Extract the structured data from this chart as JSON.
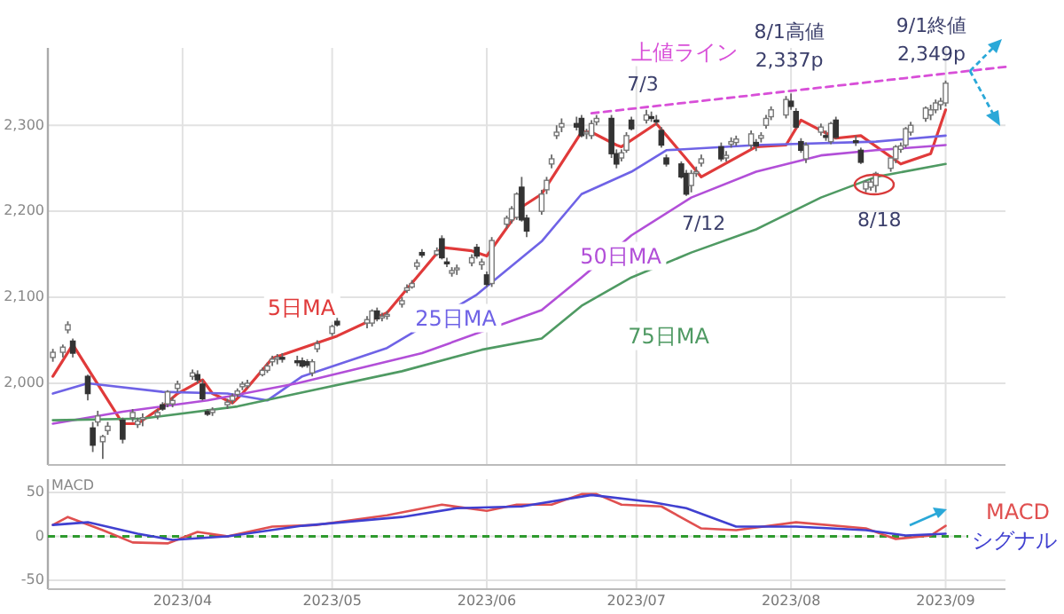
{
  "chart_data": [
    {
      "type": "candlestick",
      "xlim": [
        "2023-03-05",
        "2023-09-13"
      ],
      "ylim": [
        1905,
        2390
      ],
      "xticks": [
        {
          "value": "2023-04-01",
          "label": null
        },
        {
          "value": "2023-05-01",
          "label": null
        },
        {
          "value": "2023-06-01",
          "label": null
        },
        {
          "value": "2023-07-01",
          "label": null
        },
        {
          "value": "2023-08-01",
          "label": null
        },
        {
          "value": "2023-09-01",
          "label": null
        }
      ],
      "yticks": [
        {
          "value": 2000,
          "label": "2,000"
        },
        {
          "value": 2100,
          "label": "2,100"
        },
        {
          "value": 2200,
          "label": "2,200"
        },
        {
          "value": 2300,
          "label": "2,300"
        }
      ],
      "tick_labels": "y",
      "grid": true,
      "x": [
        "2023-03-06",
        "2023-03-08",
        "2023-03-09",
        "2023-03-10",
        "2023-03-13",
        "2023-03-14",
        "2023-03-15",
        "2023-03-16",
        "2023-03-17",
        "2023-03-20",
        "2023-03-22",
        "2023-03-23",
        "2023-03-24",
        "2023-03-27",
        "2023-03-28",
        "2023-03-29",
        "2023-03-30",
        "2023-03-31",
        "2023-04-03",
        "2023-04-04",
        "2023-04-05",
        "2023-04-06",
        "2023-04-07",
        "2023-04-10",
        "2023-04-11",
        "2023-04-12",
        "2023-04-13",
        "2023-04-14",
        "2023-04-17",
        "2023-04-18",
        "2023-04-19",
        "2023-04-20",
        "2023-04-21",
        "2023-04-24",
        "2023-04-25",
        "2023-04-26",
        "2023-04-27",
        "2023-04-28",
        "2023-05-01",
        "2023-05-02",
        "2023-05-08",
        "2023-05-09",
        "2023-05-10",
        "2023-05-11",
        "2023-05-12",
        "2023-05-15",
        "2023-05-16",
        "2023-05-17",
        "2023-05-18",
        "2023-05-19",
        "2023-05-22",
        "2023-05-23",
        "2023-05-24",
        "2023-05-25",
        "2023-05-26",
        "2023-05-29",
        "2023-05-30",
        "2023-05-31",
        "2023-06-01",
        "2023-06-02",
        "2023-06-05",
        "2023-06-06",
        "2023-06-07",
        "2023-06-08",
        "2023-06-09",
        "2023-06-12",
        "2023-06-13",
        "2023-06-14",
        "2023-06-15",
        "2023-06-16",
        "2023-06-19",
        "2023-06-20",
        "2023-06-21",
        "2023-06-22",
        "2023-06-23",
        "2023-06-26",
        "2023-06-27",
        "2023-06-28",
        "2023-06-29",
        "2023-06-30",
        "2023-07-03",
        "2023-07-04",
        "2023-07-05",
        "2023-07-06",
        "2023-07-07",
        "2023-07-10",
        "2023-07-11",
        "2023-07-12",
        "2023-07-13",
        "2023-07-14",
        "2023-07-18",
        "2023-07-19",
        "2023-07-20",
        "2023-07-21",
        "2023-07-24",
        "2023-07-25",
        "2023-07-26",
        "2023-07-27",
        "2023-07-28",
        "2023-07-31",
        "2023-08-01",
        "2023-08-02",
        "2023-08-03",
        "2023-08-04",
        "2023-08-07",
        "2023-08-08",
        "2023-08-09",
        "2023-08-10",
        "2023-08-14",
        "2023-08-15",
        "2023-08-16",
        "2023-08-17",
        "2023-08-18",
        "2023-08-21",
        "2023-08-22",
        "2023-08-23",
        "2023-08-24",
        "2023-08-25",
        "2023-08-28",
        "2023-08-29",
        "2023-08-30",
        "2023-08-31",
        "2023-09-01"
      ],
      "ohlc": [
        [
          2030,
          2040,
          2025,
          2036
        ],
        [
          2036,
          2045,
          2030,
          2042
        ],
        [
          2062,
          2072,
          2058,
          2068
        ],
        [
          2049,
          2052,
          2030,
          2035
        ],
        [
          2008,
          2010,
          1980,
          1988
        ],
        [
          1948,
          1955,
          1920,
          1928
        ],
        [
          1955,
          1968,
          1950,
          1962
        ],
        [
          1932,
          1940,
          1912,
          1938
        ],
        [
          1945,
          1955,
          1940,
          1950
        ],
        [
          1957,
          1960,
          1930,
          1935
        ],
        [
          1960,
          1970,
          1955,
          1966
        ],
        [
          1952,
          1960,
          1948,
          1956
        ],
        [
          1958,
          1965,
          1950,
          1960
        ],
        [
          1962,
          1970,
          1958,
          1966
        ],
        [
          1975,
          1978,
          1968,
          1970
        ],
        [
          1976,
          1992,
          1972,
          1990
        ],
        [
          1976,
          1984,
          1972,
          1980
        ],
        [
          1994,
          2003,
          1990,
          1999
        ],
        [
          2008,
          2016,
          2004,
          2012
        ],
        [
          2010,
          2015,
          2000,
          2004
        ],
        [
          1999,
          2004,
          1980,
          1982
        ],
        [
          1967,
          1970,
          1962,
          1964
        ],
        [
          1966,
          1972,
          1962,
          1969
        ],
        [
          1975,
          1982,
          1970,
          1978
        ],
        [
          1980,
          1988,
          1976,
          1985
        ],
        [
          1987,
          1994,
          1984,
          1991
        ],
        [
          1996,
          2002,
          1992,
          1999
        ],
        [
          1997,
          2004,
          1994,
          2000
        ],
        [
          2010,
          2018,
          2008,
          2015
        ],
        [
          2015,
          2024,
          2012,
          2020
        ],
        [
          2025,
          2032,
          2020,
          2028
        ],
        [
          2028,
          2034,
          2022,
          2030
        ],
        [
          2030,
          2035,
          2024,
          2028
        ],
        [
          2026,
          2032,
          2020,
          2024
        ],
        [
          2026,
          2030,
          2018,
          2020
        ],
        [
          2025,
          2028,
          2018,
          2021
        ],
        [
          2012,
          2028,
          2008,
          2025
        ],
        [
          2040,
          2050,
          2036,
          2046
        ],
        [
          2058,
          2068,
          2055,
          2066
        ],
        [
          2072,
          2076,
          2066,
          2068
        ],
        [
          2070,
          2078,
          2064,
          2074
        ],
        [
          2070,
          2086,
          2066,
          2084
        ],
        [
          2084,
          2088,
          2072,
          2075
        ],
        [
          2076,
          2082,
          2072,
          2078
        ],
        [
          2078,
          2084,
          2074,
          2080
        ],
        [
          2092,
          2100,
          2088,
          2096
        ],
        [
          2108,
          2115,
          2105,
          2111
        ],
        [
          2112,
          2120,
          2110,
          2116
        ],
        [
          2136,
          2144,
          2132,
          2140
        ],
        [
          2152,
          2156,
          2146,
          2149
        ],
        [
          2150,
          2158,
          2148,
          2154
        ],
        [
          2168,
          2172,
          2144,
          2146
        ],
        [
          2141,
          2146,
          2135,
          2139
        ],
        [
          2128,
          2135,
          2124,
          2131
        ],
        [
          2132,
          2138,
          2126,
          2134
        ],
        [
          2140,
          2150,
          2136,
          2146
        ],
        [
          2158,
          2162,
          2145,
          2148
        ],
        [
          2138,
          2145,
          2132,
          2141
        ],
        [
          2126,
          2130,
          2112,
          2115
        ],
        [
          2116,
          2170,
          2112,
          2166
        ],
        [
          2185,
          2195,
          2180,
          2192
        ],
        [
          2190,
          2206,
          2186,
          2203
        ],
        [
          2193,
          2222,
          2190,
          2220
        ],
        [
          2228,
          2240,
          2188,
          2190
        ],
        [
          2192,
          2196,
          2170,
          2177
        ],
        [
          2200,
          2225,
          2196,
          2220
        ],
        [
          2225,
          2240,
          2220,
          2236
        ],
        [
          2255,
          2266,
          2250,
          2261
        ],
        [
          2288,
          2300,
          2284,
          2292
        ],
        [
          2298,
          2308,
          2292,
          2302
        ],
        [
          2302,
          2310,
          2294,
          2298
        ],
        [
          2308,
          2312,
          2286,
          2288
        ],
        [
          2290,
          2296,
          2284,
          2292
        ],
        [
          2288,
          2306,
          2284,
          2302
        ],
        [
          2304,
          2312,
          2300,
          2308
        ],
        [
          2308,
          2312,
          2262,
          2267
        ],
        [
          2267,
          2272,
          2250,
          2255
        ],
        [
          2262,
          2272,
          2258,
          2268
        ],
        [
          2271,
          2292,
          2268,
          2288
        ],
        [
          2306,
          2310,
          2294,
          2296
        ],
        [
          2306,
          2318,
          2302,
          2312
        ],
        [
          2310,
          2316,
          2304,
          2308
        ],
        [
          2306,
          2312,
          2300,
          2304
        ],
        [
          2294,
          2298,
          2274,
          2277
        ],
        [
          2262,
          2266,
          2252,
          2255
        ],
        [
          2255,
          2258,
          2238,
          2240
        ],
        [
          2244,
          2248,
          2218,
          2220
        ],
        [
          2230,
          2248,
          2222,
          2244
        ],
        [
          2244,
          2252,
          2240,
          2246
        ],
        [
          2256,
          2266,
          2252,
          2261
        ],
        [
          2275,
          2280,
          2258,
          2261
        ],
        [
          2262,
          2270,
          2258,
          2265
        ],
        [
          2278,
          2286,
          2274,
          2281
        ],
        [
          2280,
          2288,
          2276,
          2284
        ],
        [
          2277,
          2294,
          2272,
          2290
        ],
        [
          2280,
          2284,
          2270,
          2276
        ],
        [
          2285,
          2292,
          2280,
          2288
        ],
        [
          2300,
          2312,
          2296,
          2308
        ],
        [
          2310,
          2322,
          2306,
          2318
        ],
        [
          2312,
          2334,
          2308,
          2330
        ],
        [
          2328,
          2337,
          2318,
          2322
        ],
        [
          2316,
          2320,
          2296,
          2298
        ],
        [
          2281,
          2285,
          2268,
          2271
        ],
        [
          2261,
          2280,
          2256,
          2277
        ],
        [
          2292,
          2302,
          2288,
          2298
        ],
        [
          2288,
          2294,
          2282,
          2286
        ],
        [
          2281,
          2304,
          2278,
          2302
        ],
        [
          2306,
          2310,
          2284,
          2286
        ],
        [
          2282,
          2288,
          2276,
          2280
        ],
        [
          2271,
          2274,
          2255,
          2257
        ],
        [
          2226,
          2236,
          2222,
          2234
        ],
        [
          2228,
          2238,
          2224,
          2234
        ],
        [
          2230,
          2246,
          2222,
          2244
        ],
        [
          2250,
          2263,
          2246,
          2262
        ],
        [
          2261,
          2277,
          2256,
          2275
        ],
        [
          2272,
          2280,
          2268,
          2276
        ],
        [
          2277,
          2298,
          2274,
          2296
        ],
        [
          2292,
          2304,
          2288,
          2300
        ],
        [
          2308,
          2322,
          2304,
          2320
        ],
        [
          2312,
          2324,
          2306,
          2318
        ],
        [
          2318,
          2330,
          2314,
          2326
        ],
        [
          2324,
          2332,
          2318,
          2328
        ],
        [
          2326,
          2352,
          2322,
          2349
        ]
      ],
      "series": [
        {
          "name": "5日MA",
          "type": "line",
          "color": "#e03a3a",
          "x": [
            "2023-03-06",
            "2023-03-10",
            "2023-03-14",
            "2023-03-20",
            "2023-03-23",
            "2023-03-28",
            "2023-03-31",
            "2023-04-05",
            "2023-04-07",
            "2023-04-11",
            "2023-04-13",
            "2023-04-19",
            "2023-05-02",
            "2023-05-12",
            "2023-05-23",
            "2023-05-29",
            "2023-06-01",
            "2023-06-08",
            "2023-06-12",
            "2023-06-20",
            "2023-06-22",
            "2023-06-27",
            "2023-06-28",
            "2023-07-05",
            "2023-07-11",
            "2023-07-14",
            "2023-07-25",
            "2023-07-31",
            "2023-08-03",
            "2023-08-10",
            "2023-08-15",
            "2023-08-23",
            "2023-08-29",
            "2023-09-01"
          ],
          "values": [
            2008,
            2045,
            2008,
            1953,
            1953,
            1973,
            1988,
            2004,
            1988,
            1977,
            1988,
            2029,
            2055,
            2082,
            2158,
            2154,
            2148,
            2205,
            2220,
            2292,
            2292,
            2277,
            2275,
            2302,
            2261,
            2240,
            2275,
            2277,
            2306,
            2285,
            2288,
            2255,
            2267,
            2318
          ]
        },
        {
          "name": "25日MA",
          "type": "line",
          "color": "#6f63e6",
          "x": [
            "2023-03-06",
            "2023-03-13",
            "2023-03-28",
            "2023-04-10",
            "2023-04-18",
            "2023-04-25",
            "2023-05-12",
            "2023-05-30",
            "2023-06-12",
            "2023-06-20",
            "2023-06-30",
            "2023-07-07",
            "2023-07-25",
            "2023-08-18",
            "2023-09-01"
          ],
          "values": [
            1988,
            2000,
            1990,
            1988,
            1980,
            2008,
            2041,
            2103,
            2165,
            2220,
            2246,
            2271,
            2277,
            2281,
            2288
          ]
        },
        {
          "name": "50日MA",
          "type": "line",
          "color": "#b24fd8",
          "x": [
            "2023-03-06",
            "2023-03-20",
            "2023-04-06",
            "2023-04-24",
            "2023-05-19",
            "2023-06-12",
            "2023-06-20",
            "2023-06-30",
            "2023-07-12",
            "2023-07-25",
            "2023-08-07",
            "2023-08-18",
            "2023-09-01"
          ],
          "values": [
            1953,
            1967,
            1980,
            2000,
            2035,
            2085,
            2123,
            2172,
            2216,
            2246,
            2265,
            2271,
            2277
          ]
        },
        {
          "name": "75日MA",
          "type": "line",
          "color": "#4f9a63",
          "x": [
            "2023-03-06",
            "2023-03-24",
            "2023-04-12",
            "2023-04-24",
            "2023-05-15",
            "2023-05-31",
            "2023-06-12",
            "2023-06-20",
            "2023-06-30",
            "2023-07-12",
            "2023-07-25",
            "2023-08-07",
            "2023-08-18",
            "2023-09-01"
          ],
          "values": [
            1957,
            1959,
            1973,
            1988,
            2014,
            2039,
            2052,
            2090,
            2123,
            2152,
            2179,
            2216,
            2240,
            2255
          ]
        },
        {
          "name": "上値ライン",
          "type": "line",
          "color": "#d84fd8",
          "line_style": "dashed",
          "x": [
            "2023-06-22",
            "2023-09-13"
          ],
          "values": [
            2314,
            2368
          ]
        }
      ],
      "annotations": [
        {
          "text": "7/3",
          "x": "2023-07-03",
          "y": 2318
        },
        {
          "text": "8/1高値\n2,337p",
          "x": "2023-08-01",
          "y": 2337
        },
        {
          "text": "9/1終値\n2,349p",
          "x": "2023-09-01",
          "y": 2349
        },
        {
          "text": "7/12",
          "x": "2023-07-12",
          "y": 2222
        },
        {
          "text": "8/18",
          "x": "2023-08-18",
          "y": 2222
        }
      ]
    },
    {
      "type": "line",
      "ylabel": "MACD",
      "xlim": [
        "2023-03-05",
        "2023-09-13"
      ],
      "ylim": [
        -60,
        65
      ],
      "xticks": [
        {
          "value": "2023-04-01",
          "label": "2023/04"
        },
        {
          "value": "2023-05-01",
          "label": "2023/05"
        },
        {
          "value": "2023-06-01",
          "label": "2023/06"
        },
        {
          "value": "2023-07-01",
          "label": "2023/07"
        },
        {
          "value": "2023-08-01",
          "label": "2023/08"
        },
        {
          "value": "2023-09-01",
          "label": "2023/09"
        }
      ],
      "yticks": [
        50,
        0,
        {
          "value": -50,
          "label": "-50"
        }
      ],
      "grid": true,
      "ref_lines": [
        {
          "axis": "y",
          "value": 0,
          "color": "#2e9a2e",
          "line_style": "dashed"
        }
      ],
      "series": [
        {
          "name": "MACD",
          "color": "#e05050",
          "x": [
            "2023-03-06",
            "2023-03-09",
            "2023-03-16",
            "2023-03-22",
            "2023-03-29",
            "2023-04-04",
            "2023-04-10",
            "2023-04-19",
            "2023-04-28",
            "2023-05-12",
            "2023-05-23",
            "2023-06-01",
            "2023-06-07",
            "2023-06-14",
            "2023-06-20",
            "2023-06-23",
            "2023-06-28",
            "2023-07-06",
            "2023-07-14",
            "2023-07-21",
            "2023-08-02",
            "2023-08-16",
            "2023-08-22",
            "2023-08-29",
            "2023-09-01"
          ],
          "values": [
            13,
            22,
            7,
            -7,
            -8,
            5,
            0,
            11,
            13,
            24,
            36,
            29,
            36,
            36,
            48,
            48,
            36,
            34,
            9,
            7,
            16,
            9,
            -3,
            1,
            12
          ]
        },
        {
          "name": "シグナル",
          "color": "#4040d0",
          "x": [
            "2023-03-06",
            "2023-03-13",
            "2023-03-23",
            "2023-03-30",
            "2023-04-10",
            "2023-04-25",
            "2023-05-15",
            "2023-05-26",
            "2023-06-08",
            "2023-06-22",
            "2023-07-04",
            "2023-07-11",
            "2023-07-21",
            "2023-08-02",
            "2023-08-16",
            "2023-08-24",
            "2023-09-01"
          ],
          "values": [
            13,
            16,
            3,
            -4,
            0,
            12,
            22,
            32,
            34,
            47,
            39,
            32,
            11,
            11,
            7,
            1,
            3
          ]
        }
      ]
    }
  ]
}
